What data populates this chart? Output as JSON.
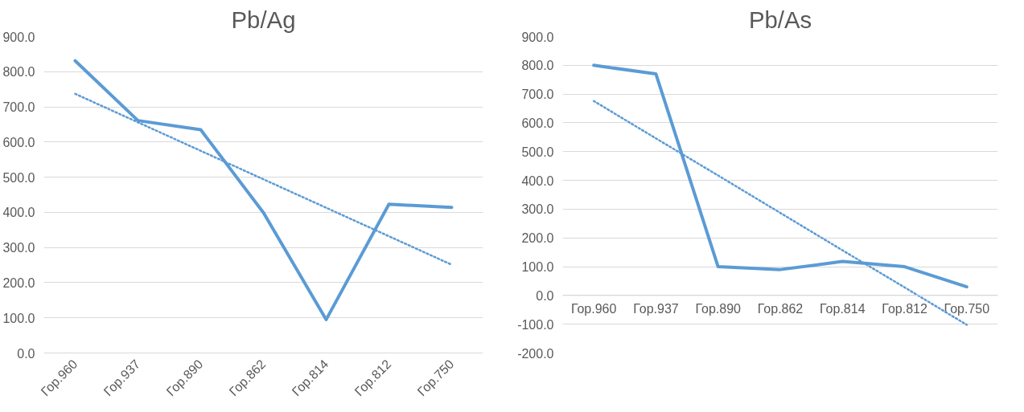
{
  "chart_data": [
    {
      "type": "line",
      "title": "Pb/Ag",
      "categories": [
        "Гор.960",
        "Гор.937",
        "Гор.890",
        "Гор.862",
        "Гор.814",
        "Гор.812",
        "Гор.750"
      ],
      "series": [
        {
          "color": "#5b9bd5",
          "values": [
            831,
            661,
            635,
            399,
            95,
            423,
            414
          ],
          "line_style": "solid"
        },
        {
          "type": "line",
          "color": "#5b9bd5",
          "values": [
            737,
            656,
            575,
            494,
            413,
            332,
            251
          ],
          "line_style": "dotted"
        }
      ],
      "ylim": [
        0,
        900
      ],
      "yticks": [
        {
          "value": 0,
          "label": "0.0"
        },
        {
          "value": 100,
          "label": "100.0"
        },
        {
          "value": 200,
          "label": "200.0"
        },
        {
          "value": 300,
          "label": "300.0"
        },
        {
          "value": 400,
          "label": "400.0"
        },
        {
          "value": 500,
          "label": "500.0"
        },
        {
          "value": 600,
          "label": "600.0"
        },
        {
          "value": 700,
          "label": "700.0"
        },
        {
          "value": 800,
          "label": "800.0"
        },
        {
          "value": 900,
          "label": "900.0"
        }
      ],
      "grid": "y"
    },
    {
      "type": "line",
      "title": "Pb/As",
      "categories": [
        "Гор.960",
        "Гор.937",
        "Гор.890",
        "Гор.862",
        "Гор.814",
        "Гор.812",
        "Гор.750"
      ],
      "series": [
        {
          "color": "#5b9bd5",
          "values": [
            800,
            770,
            100,
            90,
            118,
            100,
            30
          ],
          "line_style": "solid"
        },
        {
          "type": "line",
          "color": "#5b9bd5",
          "values": [
            676,
            546,
            417,
            287,
            157,
            28,
            -102
          ],
          "line_style": "dotted"
        }
      ],
      "ylim": [
        -200,
        900
      ],
      "yticks": [
        {
          "value": -200,
          "label": "-200.0"
        },
        {
          "value": -100,
          "label": "-100.0"
        },
        {
          "value": 0,
          "label": "0.0"
        },
        {
          "value": 100,
          "label": "100.0"
        },
        {
          "value": 200,
          "label": "200.0"
        },
        {
          "value": 300,
          "label": "300.0"
        },
        {
          "value": 400,
          "label": "400.0"
        },
        {
          "value": 500,
          "label": "500.0"
        },
        {
          "value": 600,
          "label": "600.0"
        },
        {
          "value": 700,
          "label": "700.0"
        },
        {
          "value": 800,
          "label": "800.0"
        },
        {
          "value": 900,
          "label": "900.0"
        }
      ],
      "grid": "y"
    }
  ]
}
